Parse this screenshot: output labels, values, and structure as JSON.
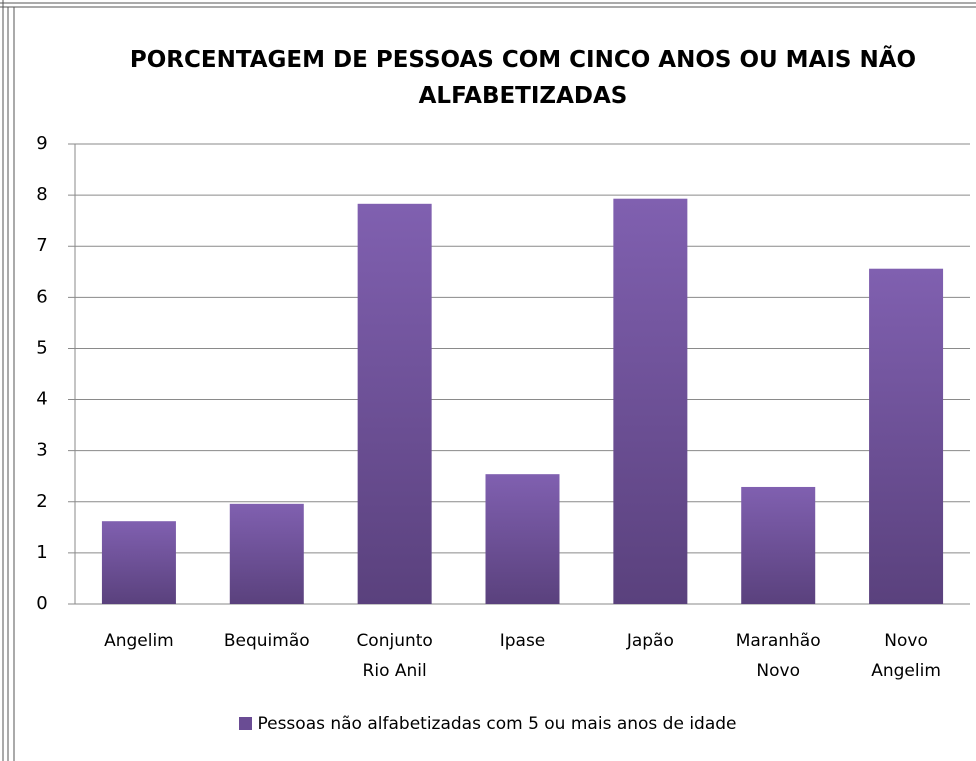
{
  "chart_data": {
    "type": "bar",
    "title": "PORCENTAGEM DE PESSOAS COM CINCO ANOS OU MAIS NÃO ALFABETIZADAS",
    "categories": [
      "Angelim",
      "Bequimão",
      "Conjunto Rio Anil",
      "Ipase",
      "Japão",
      "Maranhão Novo",
      "Novo Angelim"
    ],
    "series": [
      {
        "name": "Pessoas não alfabetizadas com 5 ou mais anos de idade",
        "color": "#6a4c94",
        "values": [
          1.62,
          1.96,
          7.83,
          2.54,
          7.93,
          2.29,
          6.56
        ]
      }
    ],
    "ylim": [
      0,
      9
    ],
    "yticks": [
      0,
      1,
      2,
      3,
      4,
      5,
      6,
      7,
      8,
      9
    ],
    "grid": true,
    "legend": "bottom"
  }
}
